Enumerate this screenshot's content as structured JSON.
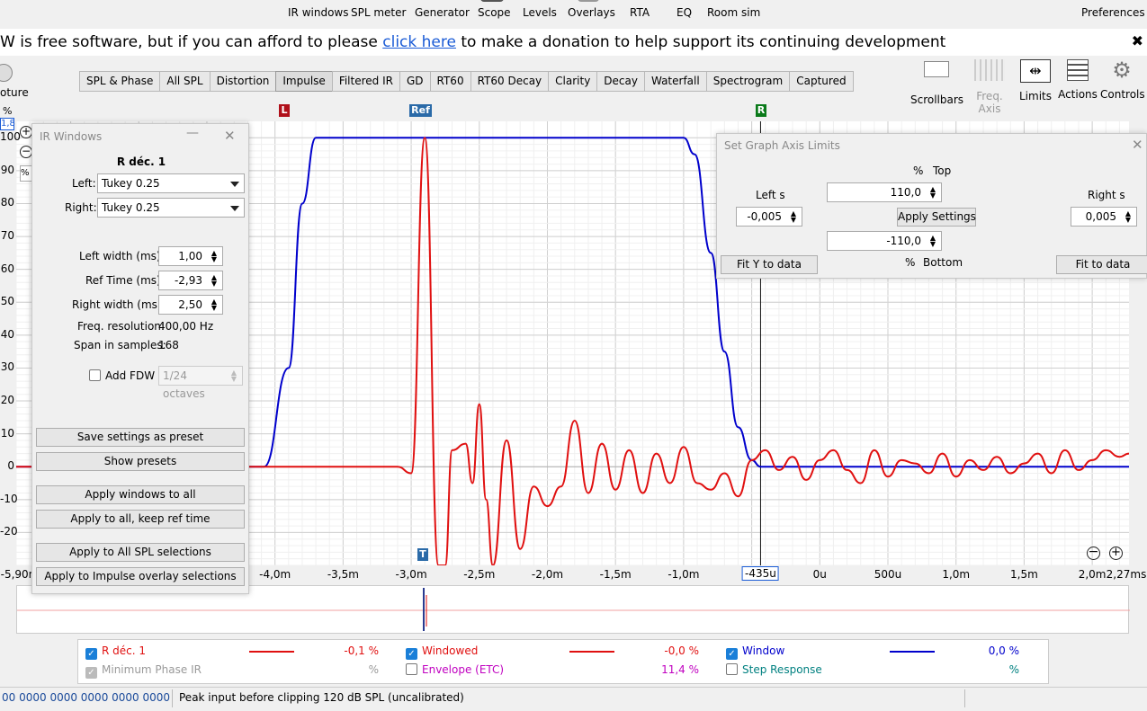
{
  "toolbar": {
    "items": [
      "IR windows",
      "SPL meter",
      "Generator",
      "Scope",
      "Levels",
      "Overlays",
      "RTA",
      "EQ",
      "Room sim"
    ],
    "preferences": "Preferences"
  },
  "donate": {
    "prefix": "W is free software, but if you can afford to please ",
    "link": "click here",
    "suffix": " to make a donation to help support its continuing development"
  },
  "left_stub": {
    "label": "oture",
    "value": "1,8",
    "pct": "%",
    "zoom": "%"
  },
  "tabs": [
    "SPL & Phase",
    "All SPL",
    "Distortion",
    "Impulse",
    "Filtered IR",
    "GD",
    "RT60",
    "RT60 Decay",
    "Clarity",
    "Decay",
    "Waterfall",
    "Spectrogram",
    "Captured"
  ],
  "active_tab": "Impulse",
  "controls": [
    "Scrollbars",
    "Freq. Axis",
    "Limits",
    "Actions",
    "Controls"
  ],
  "markers": {
    "left": "L",
    "ref": "Ref",
    "right": "R",
    "time": "T"
  },
  "y_unit": "%",
  "y_ticks": [
    "100",
    "90",
    "80",
    "70",
    "60",
    "50",
    "40",
    "30",
    "20",
    "10",
    "0",
    "-10",
    "-20"
  ],
  "x_ticks": [
    "-5,90m",
    "-4,0m",
    "-3,5m",
    "-3,0m",
    "-2,5m",
    "-2,0m",
    "-1,5m",
    "-1,0m",
    "-435u",
    "0u",
    "500u",
    "1,0m",
    "1,5m",
    "2,0m",
    "2,27ms"
  ],
  "chart_data": {
    "type": "line",
    "xlabel": "",
    "ylabel": "%",
    "xlim": [
      -5.9,
      2.27
    ],
    "ylim": [
      -30,
      105
    ],
    "grid": true,
    "series": [
      {
        "name": "Window",
        "color": "#0000cc",
        "x": [
          -5.9,
          -4.08,
          -3.9,
          -3.8,
          -3.7,
          -1.0,
          -0.92,
          -0.8,
          -0.7,
          -0.6,
          -0.5,
          -0.435,
          2.27
        ],
        "y": [
          0,
          0,
          30,
          80,
          100,
          100,
          95,
          65,
          35,
          12,
          2,
          0,
          0
        ]
      },
      {
        "name": "Windowed",
        "color": "#e01010",
        "x": [
          -5.9,
          -4.08,
          -3.1,
          -3.0,
          -2.9,
          -2.8,
          -2.75,
          -2.7,
          -2.6,
          -2.55,
          -2.5,
          -2.45,
          -2.4,
          -2.3,
          -2.2,
          -2.1,
          -2.0,
          -1.9,
          -1.8,
          -1.7,
          -1.6,
          -1.5,
          -1.4,
          -1.3,
          -1.2,
          -1.1,
          -1.0,
          -0.9,
          -0.8,
          -0.7,
          -0.6,
          -0.5,
          -0.4,
          -0.3,
          -0.2,
          -0.1,
          0.0,
          0.1,
          0.2,
          0.3,
          0.4,
          0.5,
          0.6,
          0.7,
          0.8,
          0.9,
          1.0,
          1.1,
          1.2,
          1.3,
          1.4,
          1.5,
          1.6,
          1.7,
          1.8,
          1.9,
          2.0,
          2.1,
          2.2,
          2.27
        ],
        "y": [
          0,
          0,
          0,
          -2,
          100,
          -30,
          -30,
          5,
          7,
          -5,
          19,
          -10,
          -30,
          8,
          -25,
          -6,
          -12,
          -6,
          14,
          -8,
          7,
          -7,
          5,
          -8,
          4,
          -5,
          6,
          -5,
          -7,
          -2,
          -9,
          2,
          5,
          -1,
          3,
          -4,
          2,
          5,
          -1,
          -5,
          5,
          -3,
          2,
          1,
          -2,
          4,
          -3,
          2,
          -1,
          3,
          -2,
          1,
          4,
          -2,
          5,
          -1,
          2,
          5,
          3,
          4
        ]
      }
    ]
  },
  "ir_windows": {
    "title": "IR Windows",
    "measurement": "R déc. 1",
    "left_label": "Left:",
    "left_value": "Tukey 0.25",
    "right_label": "Right:",
    "right_value": "Tukey 0.25",
    "left_width_label": "Left width (ms):",
    "left_width": "1,00",
    "ref_time_label": "Ref Time (ms):",
    "ref_time": "-2,93",
    "right_width_label": "Right width (ms):",
    "right_width": "2,50",
    "freq_res_label": "Freq. resolution:",
    "freq_res": "400,00 Hz",
    "span_label": "Span in samples:",
    "span": "168",
    "fdw_label": "Add FDW",
    "fdw_value": "1/24 octaves",
    "buttons": [
      "Save settings as preset",
      "Show presets",
      "Apply windows to all",
      "Apply to all, keep ref time",
      "Apply to All SPL selections",
      "Apply to Impulse overlay selections"
    ]
  },
  "axis_limits": {
    "title": "Set Graph Axis Limits",
    "top_unit": "%",
    "top_label": "Top",
    "top_value": "110,0",
    "left_label": "Left s",
    "left_value": "-0,005",
    "right_label": "Right s",
    "right_value": "0,005",
    "apply": "Apply Settings",
    "bottom_value": "-110,0",
    "bottom_unit": "%",
    "bottom_label": "Bottom",
    "fit_y": "Fit Y to data",
    "fit": "Fit to data"
  },
  "legend": [
    {
      "name": "R déc. 1",
      "value": "-0,1 %",
      "color": "#e01010",
      "checked": true
    },
    {
      "name": "Windowed",
      "value": "-0,0 %",
      "color": "#e01010",
      "checked": true
    },
    {
      "name": "Window",
      "value": "0,0 %",
      "color": "#0000cc",
      "checked": true
    },
    {
      "name": "Minimum Phase IR",
      "value": "%",
      "color": "#888888",
      "checked": "disabled"
    },
    {
      "name": "Envelope (ETC)",
      "value": "11,4 %",
      "color": "#c000c0",
      "checked": false
    },
    {
      "name": "Step Response",
      "value": "%",
      "color": "#008080",
      "checked": false
    }
  ],
  "status": {
    "codes": "00 0000  0000 0000  0000 0000",
    "message": "Peak input before clipping 120 dB SPL (uncalibrated)"
  }
}
